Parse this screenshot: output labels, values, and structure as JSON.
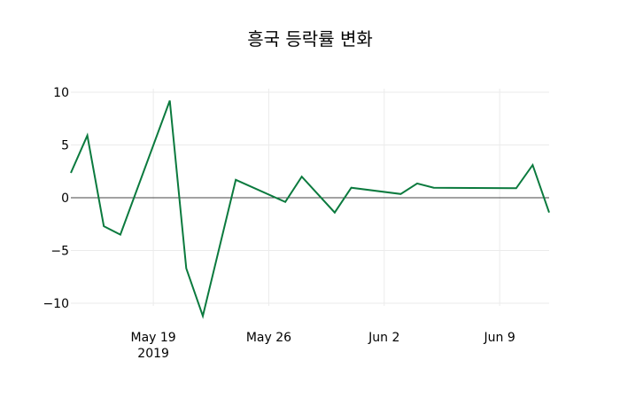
{
  "chart_data": {
    "type": "line",
    "title": "흥국 등락률 변화",
    "xlabel": "",
    "ylabel": "",
    "x": [
      "2019-05-14",
      "2019-05-15",
      "2019-05-16",
      "2019-05-17",
      "2019-05-20",
      "2019-05-21",
      "2019-05-22",
      "2019-05-24",
      "2019-05-27",
      "2019-05-28",
      "2019-05-30",
      "2019-05-31",
      "2019-06-03",
      "2019-06-04",
      "2019-06-05",
      "2019-06-10",
      "2019-06-11",
      "2019-06-12"
    ],
    "series": [
      {
        "name": "등락률",
        "color": "#0b7a3e",
        "values": [
          2.35,
          5.9,
          -2.7,
          -3.5,
          9.2,
          -6.7,
          -11.2,
          1.7,
          -0.4,
          2.0,
          -1.4,
          0.95,
          0.35,
          1.35,
          0.95,
          0.9,
          3.1,
          -1.4
        ]
      }
    ],
    "ylim": [
      -12,
      10.5
    ],
    "yticks": [
      10,
      5,
      0,
      -5,
      -10
    ],
    "ytick_labels": [
      "10",
      "5",
      "0",
      "−5",
      "−10"
    ],
    "xticks": [
      "2019-05-19",
      "2019-05-26",
      "2019-06-02",
      "2019-06-09"
    ],
    "xtick_labels": [
      "May 19",
      "May 26",
      "Jun 2",
      "Jun 9"
    ],
    "xtick_sublabel": "2019",
    "grid": true,
    "legend": false
  }
}
